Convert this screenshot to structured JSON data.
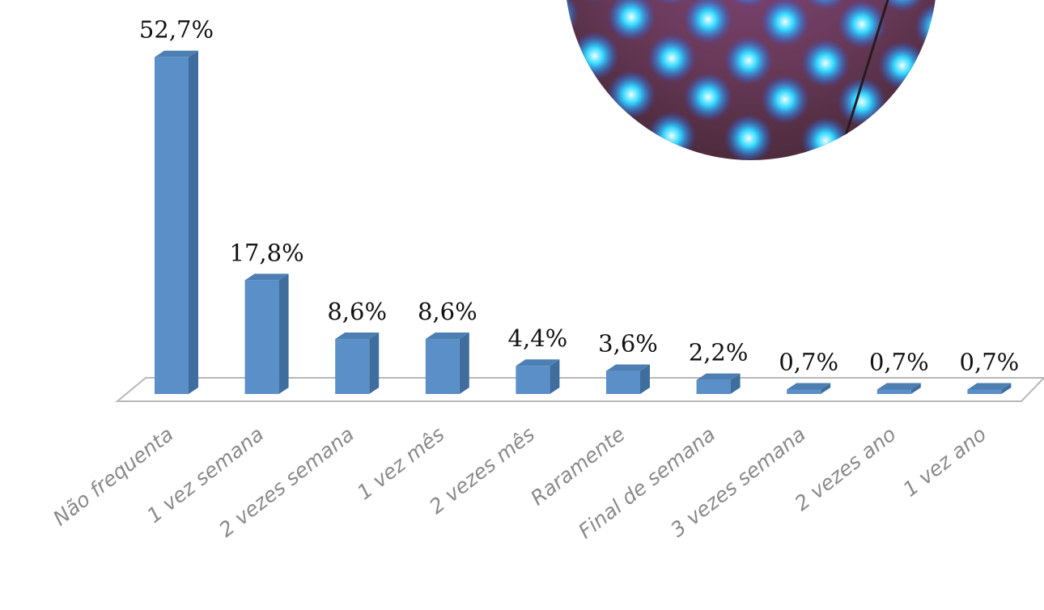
{
  "chart_data": {
    "type": "bar",
    "categories": [
      "Não frequenta",
      "1 vez semana",
      "2 vezes semana",
      "1 vez mês",
      "2 vezes mês",
      "Raramente",
      "Final de semana",
      "3 vezes semana",
      "2 vezes ano",
      "1 vez ano"
    ],
    "values": [
      52.7,
      17.8,
      8.6,
      8.6,
      4.4,
      3.6,
      2.2,
      0.7,
      0.7,
      0.7
    ],
    "value_labels": [
      "52,7%",
      "17,8%",
      "8,6%",
      "8,6%",
      "4,4%",
      "3,6%",
      "2,2%",
      "0,7%",
      "0,7%",
      "0,7%"
    ],
    "color": "#5b8fc7"
  }
}
